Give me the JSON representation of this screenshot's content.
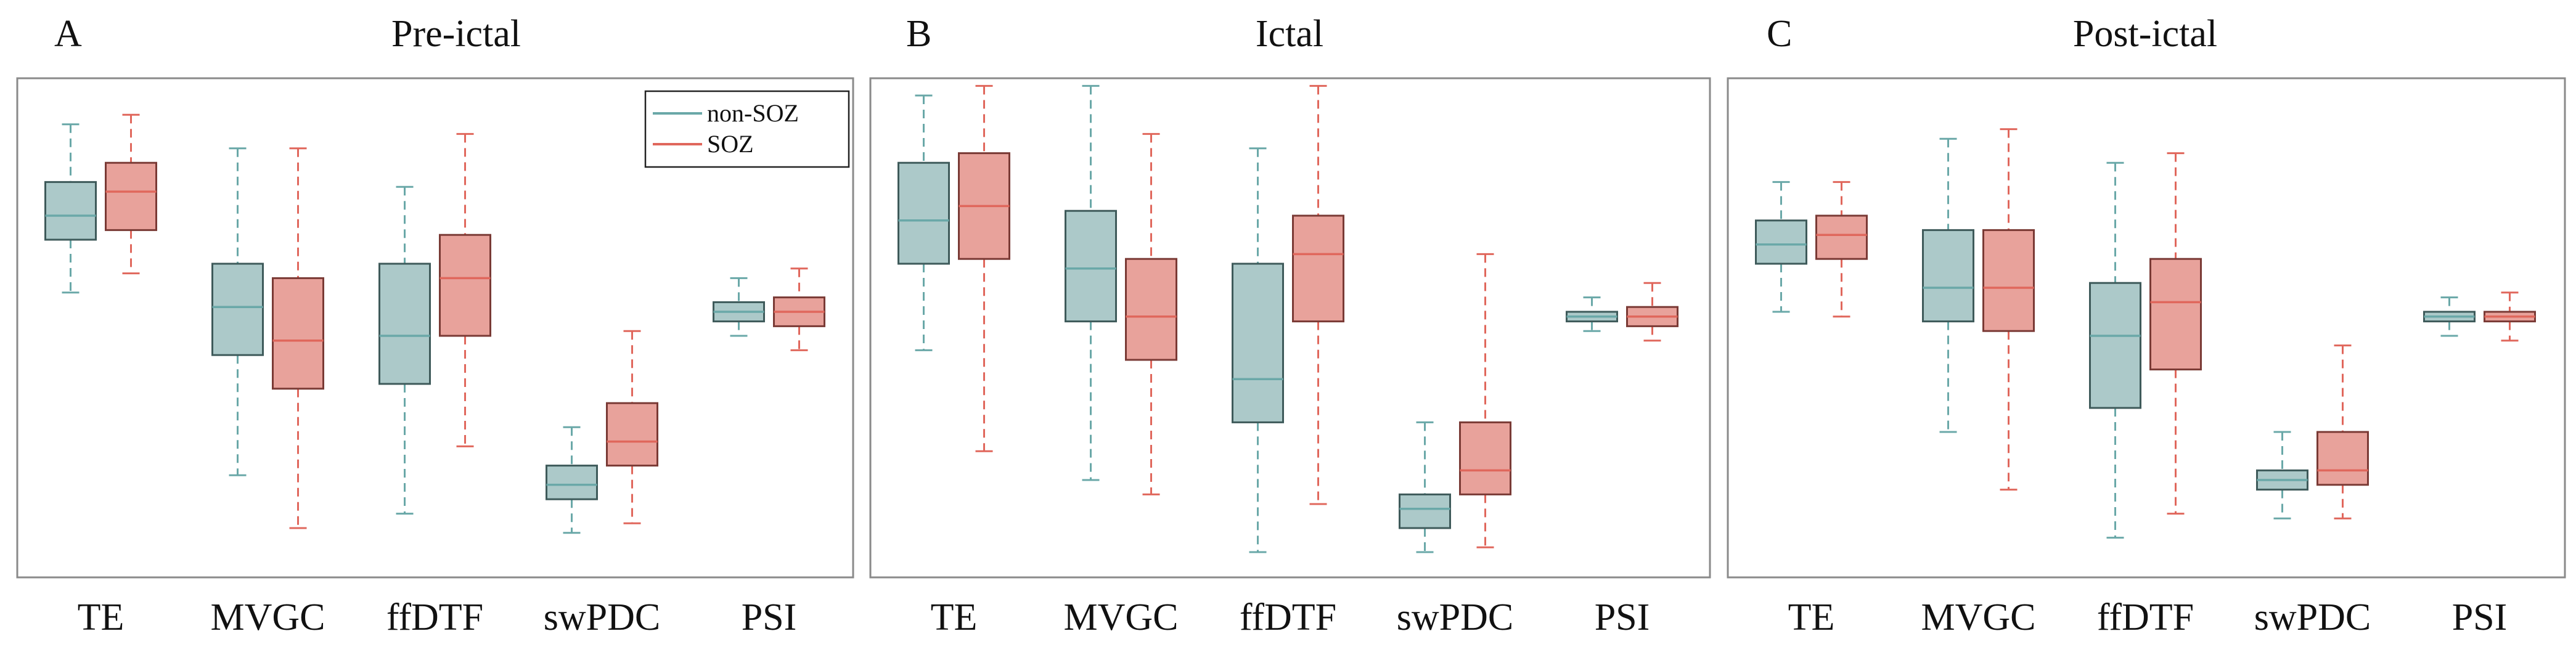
{
  "colors": {
    "non_soz": "#6aa8a8",
    "non_soz_fill": "#acc9c9",
    "non_soz_edge": "#3e5a5a",
    "soz": "#e0675c",
    "soz_fill": "#e8a29b",
    "soz_edge": "#7a3a35",
    "frame": "#8a8a8a"
  },
  "chart_data": [
    {
      "type": "box",
      "letter": "A",
      "title": "Pre-ictal",
      "categories": [
        "TE",
        "MVGC",
        "ffDTF",
        "swPDC",
        "PSI"
      ],
      "ylim": [
        0,
        1
      ],
      "legend": {
        "position": "top-right",
        "entries": [
          "non-SOZ",
          "SOZ"
        ]
      },
      "series": [
        {
          "name": "non-SOZ",
          "boxes": [
            {
              "whislo": 0.59,
              "q1": 0.7,
              "med": 0.75,
              "q3": 0.82,
              "whishi": 0.94
            },
            {
              "whislo": 0.21,
              "q1": 0.46,
              "med": 0.56,
              "q3": 0.65,
              "whishi": 0.89
            },
            {
              "whislo": 0.13,
              "q1": 0.4,
              "med": 0.5,
              "q3": 0.65,
              "whishi": 0.81
            },
            {
              "whislo": 0.09,
              "q1": 0.16,
              "med": 0.19,
              "q3": 0.23,
              "whishi": 0.31
            },
            {
              "whislo": 0.5,
              "q1": 0.53,
              "med": 0.55,
              "q3": 0.57,
              "whishi": 0.62
            }
          ]
        },
        {
          "name": "SOZ",
          "boxes": [
            {
              "whislo": 0.63,
              "q1": 0.72,
              "med": 0.8,
              "q3": 0.86,
              "whishi": 0.96
            },
            {
              "whislo": 0.1,
              "q1": 0.39,
              "med": 0.49,
              "q3": 0.62,
              "whishi": 0.89
            },
            {
              "whislo": 0.27,
              "q1": 0.5,
              "med": 0.62,
              "q3": 0.71,
              "whishi": 0.92
            },
            {
              "whislo": 0.11,
              "q1": 0.23,
              "med": 0.28,
              "q3": 0.36,
              "whishi": 0.51
            },
            {
              "whislo": 0.47,
              "q1": 0.52,
              "med": 0.55,
              "q3": 0.58,
              "whishi": 0.64
            }
          ]
        }
      ]
    },
    {
      "type": "box",
      "letter": "B",
      "title": "Ictal",
      "categories": [
        "TE",
        "MVGC",
        "ffDTF",
        "swPDC",
        "PSI"
      ],
      "ylim": [
        0,
        1
      ],
      "series": [
        {
          "name": "non-SOZ",
          "boxes": [
            {
              "whislo": 0.47,
              "q1": 0.65,
              "med": 0.74,
              "q3": 0.86,
              "whishi": 1.0
            },
            {
              "whislo": 0.2,
              "q1": 0.53,
              "med": 0.64,
              "q3": 0.76,
              "whishi": 1.02
            },
            {
              "whislo": 0.05,
              "q1": 0.32,
              "med": 0.41,
              "q3": 0.65,
              "whishi": 0.89
            },
            {
              "whislo": 0.05,
              "q1": 0.1,
              "med": 0.14,
              "q3": 0.17,
              "whishi": 0.32
            },
            {
              "whislo": 0.51,
              "q1": 0.53,
              "med": 0.54,
              "q3": 0.55,
              "whishi": 0.58
            }
          ]
        },
        {
          "name": "SOZ",
          "boxes": [
            {
              "whislo": 0.26,
              "q1": 0.66,
              "med": 0.77,
              "q3": 0.88,
              "whishi": 1.02
            },
            {
              "whislo": 0.17,
              "q1": 0.45,
              "med": 0.54,
              "q3": 0.66,
              "whishi": 0.92
            },
            {
              "whislo": 0.15,
              "q1": 0.53,
              "med": 0.67,
              "q3": 0.75,
              "whishi": 1.02
            },
            {
              "whislo": 0.06,
              "q1": 0.17,
              "med": 0.22,
              "q3": 0.32,
              "whishi": 0.67
            },
            {
              "whislo": 0.49,
              "q1": 0.52,
              "med": 0.54,
              "q3": 0.56,
              "whishi": 0.61
            }
          ]
        }
      ]
    },
    {
      "type": "box",
      "letter": "C",
      "title": "Post-ictal",
      "categories": [
        "TE",
        "MVGC",
        "ffDTF",
        "swPDC",
        "PSI"
      ],
      "ylim": [
        0,
        1
      ],
      "series": [
        {
          "name": "non-SOZ",
          "boxes": [
            {
              "whislo": 0.55,
              "q1": 0.65,
              "med": 0.69,
              "q3": 0.74,
              "whishi": 0.82
            },
            {
              "whislo": 0.3,
              "q1": 0.53,
              "med": 0.6,
              "q3": 0.72,
              "whishi": 0.91
            },
            {
              "whislo": 0.08,
              "q1": 0.35,
              "med": 0.5,
              "q3": 0.61,
              "whishi": 0.86
            },
            {
              "whislo": 0.12,
              "q1": 0.18,
              "med": 0.2,
              "q3": 0.22,
              "whishi": 0.3
            },
            {
              "whislo": 0.5,
              "q1": 0.53,
              "med": 0.54,
              "q3": 0.55,
              "whishi": 0.58
            }
          ]
        },
        {
          "name": "SOZ",
          "boxes": [
            {
              "whislo": 0.54,
              "q1": 0.66,
              "med": 0.71,
              "q3": 0.75,
              "whishi": 0.82
            },
            {
              "whislo": 0.18,
              "q1": 0.51,
              "med": 0.6,
              "q3": 0.72,
              "whishi": 0.93
            },
            {
              "whislo": 0.13,
              "q1": 0.43,
              "med": 0.57,
              "q3": 0.66,
              "whishi": 0.88
            },
            {
              "whislo": 0.12,
              "q1": 0.19,
              "med": 0.22,
              "q3": 0.3,
              "whishi": 0.48
            },
            {
              "whislo": 0.49,
              "q1": 0.53,
              "med": 0.54,
              "q3": 0.55,
              "whishi": 0.59
            }
          ]
        }
      ]
    }
  ]
}
